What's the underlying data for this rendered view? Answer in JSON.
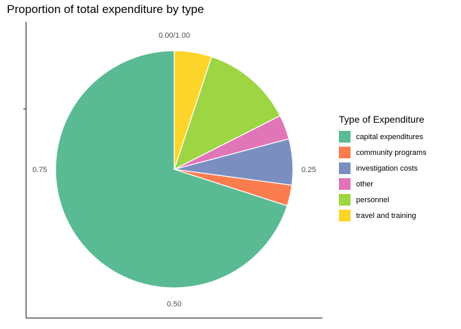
{
  "chart_data": {
    "type": "pie",
    "title": "Proportion of total expenditure by type",
    "legend_title": "Type of Expenditure",
    "legend_position": "right",
    "categories": [
      "capital expenditures",
      "community programs",
      "investigation costs",
      "other",
      "personnel",
      "travel and training"
    ],
    "values": [
      0.715,
      0.029,
      0.064,
      0.034,
      0.127,
      0.052
    ],
    "colors": [
      "#5ABA93",
      "#FB7D4F",
      "#7B8EC0",
      "#E076B8",
      "#9DD543",
      "#FDD42A"
    ],
    "tick_labels": [
      "0.00/1.00",
      "0.25",
      "0.50",
      "0.75"
    ],
    "tick_values": [
      0,
      0.25,
      0.5,
      0.75
    ]
  }
}
